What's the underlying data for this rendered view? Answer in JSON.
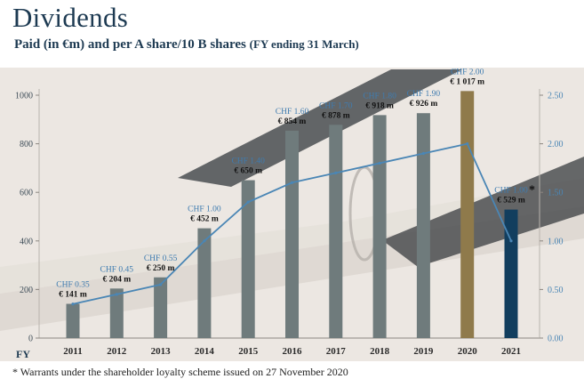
{
  "header": {
    "title": "Dividends",
    "subtitle_main": "Paid (in €m) and per A share/10 B shares",
    "subtitle_fy": "(FY ending 31 March)"
  },
  "footnote": "* Warrants under the shareholder loyalty scheme issued on 27 November 2020",
  "chart_data": {
    "type": "bar",
    "title": "Dividends",
    "xlabel": "FY",
    "categories": [
      "2011",
      "2012",
      "2013",
      "2014",
      "2015",
      "2016",
      "2017",
      "2018",
      "2019",
      "2020",
      "2021"
    ],
    "series": [
      {
        "axis": "left",
        "type": "bar",
        "unit": "€m",
        "values": [
          141,
          204,
          250,
          452,
          650,
          854,
          878,
          918,
          926,
          1017,
          529
        ],
        "value_labels": [
          "€ 141 m",
          "€ 204 m",
          "€ 250 m",
          "€ 452 m",
          "€ 650 m",
          "€ 854 m",
          "€ 878 m",
          "€ 918 m",
          "€ 926 m",
          "€ 1 017 m",
          "€ 529 m"
        ],
        "colors": [
          "#6f7b7c",
          "#6f7b7c",
          "#6f7b7c",
          "#6f7b7c",
          "#6f7b7c",
          "#6f7b7c",
          "#6f7b7c",
          "#6f7b7c",
          "#6f7b7c",
          "#8f7a4b",
          "#123e5e"
        ]
      },
      {
        "axis": "right",
        "type": "line",
        "unit": "CHF",
        "values": [
          0.35,
          0.45,
          0.55,
          1.0,
          1.4,
          1.6,
          1.7,
          1.8,
          1.9,
          2.0,
          1.0
        ],
        "value_labels": [
          "CHF 0.35",
          "CHF 0.45",
          "CHF 0.55",
          "CHF 1.00",
          "CHF 1.40",
          "CHF 1.60",
          "CHF 1.70",
          "CHF 1.80",
          "CHF 1.90",
          "CHF 2.00",
          "CHF 1.00"
        ],
        "color": "#4a86b5"
      }
    ],
    "ylim_left": [
      0,
      1100
    ],
    "yticks_left": [
      "0",
      "200",
      "400",
      "600",
      "800",
      "1000"
    ],
    "ylim_right": [
      0,
      2.75
    ],
    "yticks_right": [
      "0.00",
      "0.50",
      "1.00",
      "1.50",
      "2.00",
      "2.50"
    ],
    "annotation": "*",
    "grid": false,
    "legend": "none"
  }
}
